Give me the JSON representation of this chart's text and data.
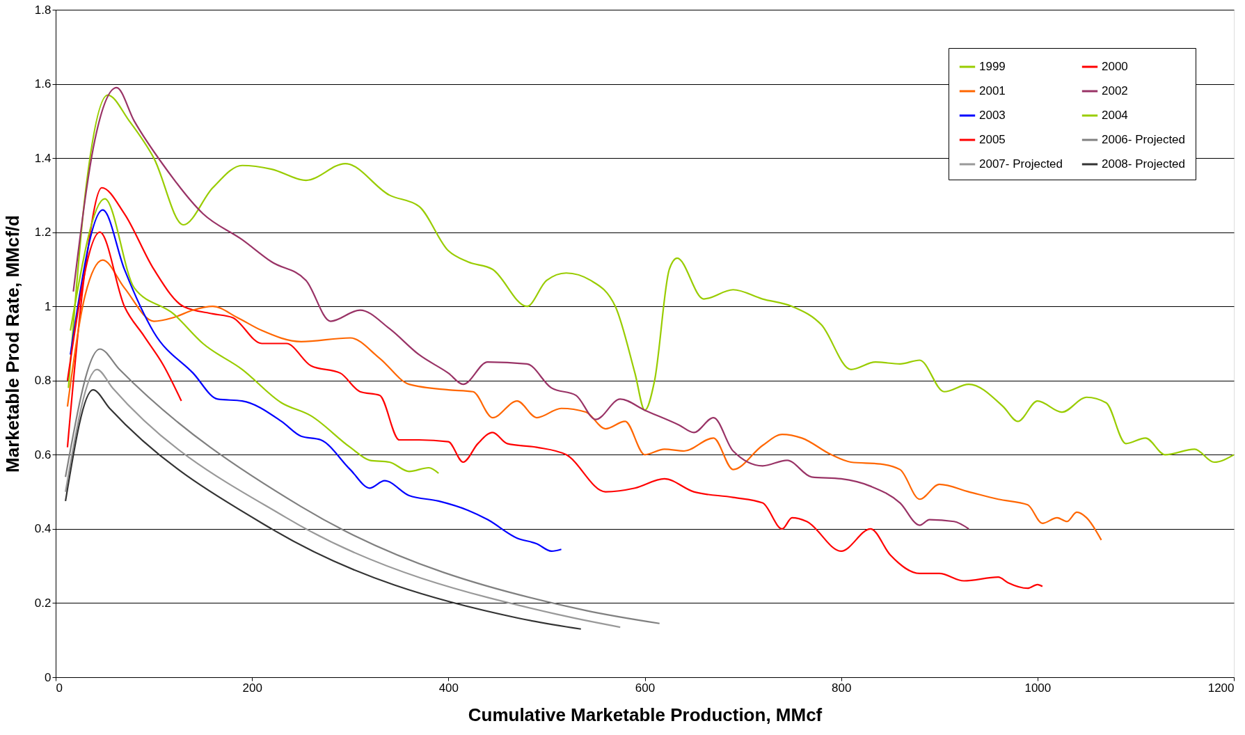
{
  "chart_data": {
    "type": "line",
    "xlabel": "Cumulative Marketable Production, MMcf",
    "ylabel": "Marketable Prod Rate, MMcf/d",
    "xlim": [
      0,
      1200
    ],
    "xticks": [
      0,
      200,
      400,
      600,
      800,
      1000,
      1200
    ],
    "ylim": [
      0,
      1.8
    ],
    "yticks": [
      0,
      0.2,
      0.4,
      0.6,
      0.8,
      1,
      1.2,
      1.4,
      1.6,
      1.8
    ],
    "grid": "y",
    "legend": "top right",
    "marker": "none",
    "line_style": "solid",
    "series": [
      {
        "name": "1999",
        "color": "#99cc00",
        "x": [
          13,
          30,
          53,
          75,
          100,
          130,
          160,
          190,
          220,
          255,
          295,
          340,
          370,
          400,
          420,
          445,
          480,
          500,
          520,
          545,
          570,
          590,
          600,
          610,
          625,
          633,
          660,
          690,
          720,
          750,
          780,
          810,
          835,
          860,
          880,
          905,
          930,
          965,
          980,
          1000,
          1025,
          1050,
          1070,
          1090,
          1110,
          1130,
          1160,
          1180,
          1200
        ],
        "values": [
          0.78,
          1.3,
          1.57,
          1.5,
          1.4,
          1.22,
          1.32,
          1.38,
          1.37,
          1.34,
          1.385,
          1.3,
          1.27,
          1.15,
          1.12,
          1.1,
          1.0,
          1.07,
          1.09,
          1.07,
          1.0,
          0.82,
          0.72,
          0.8,
          1.1,
          1.13,
          1.02,
          1.045,
          1.02,
          1.0,
          0.95,
          0.83,
          0.85,
          0.845,
          0.855,
          0.77,
          0.79,
          0.73,
          0.69,
          0.745,
          0.715,
          0.755,
          0.74,
          0.63,
          0.645,
          0.6,
          0.615,
          0.58,
          0.6
        ]
      },
      {
        "name": "2000",
        "color": "#ff0000",
        "x": [
          12,
          30,
          47,
          70,
          100,
          130,
          160,
          180,
          210,
          235,
          260,
          290,
          310,
          330,
          350,
          370,
          400,
          415,
          430,
          445,
          460,
          490,
          520,
          560,
          590,
          620,
          650,
          690,
          720,
          740,
          750,
          765,
          800,
          830,
          850,
          880,
          900,
          925,
          960,
          970,
          990,
          1000,
          1005
        ],
        "values": [
          0.62,
          1.1,
          1.32,
          1.25,
          1.1,
          1.0,
          0.98,
          0.97,
          0.9,
          0.9,
          0.84,
          0.82,
          0.77,
          0.76,
          0.64,
          0.64,
          0.635,
          0.58,
          0.63,
          0.66,
          0.63,
          0.62,
          0.6,
          0.5,
          0.51,
          0.535,
          0.5,
          0.485,
          0.47,
          0.4,
          0.43,
          0.42,
          0.34,
          0.4,
          0.33,
          0.28,
          0.28,
          0.26,
          0.27,
          0.255,
          0.24,
          0.25,
          0.245
        ]
      },
      {
        "name": "2001",
        "color": "#ff6600",
        "x": [
          12,
          30,
          48,
          70,
          100,
          120,
          140,
          160,
          185,
          210,
          250,
          300,
          330,
          360,
          400,
          425,
          445,
          470,
          490,
          515,
          540,
          560,
          580,
          600,
          620,
          640,
          670,
          690,
          720,
          740,
          760,
          790,
          810,
          840,
          860,
          880,
          900,
          930,
          960,
          990,
          1005,
          1020,
          1030,
          1040,
          1050,
          1065
        ],
        "values": [
          0.73,
          1.03,
          1.125,
          1.05,
          0.96,
          0.97,
          0.99,
          1.0,
          0.97,
          0.935,
          0.905,
          0.915,
          0.86,
          0.79,
          0.775,
          0.77,
          0.7,
          0.745,
          0.7,
          0.725,
          0.715,
          0.67,
          0.69,
          0.6,
          0.615,
          0.61,
          0.645,
          0.56,
          0.625,
          0.655,
          0.645,
          0.6,
          0.58,
          0.575,
          0.56,
          0.48,
          0.52,
          0.5,
          0.48,
          0.465,
          0.415,
          0.43,
          0.42,
          0.445,
          0.43,
          0.37
        ]
      },
      {
        "name": "2002",
        "color": "#993366",
        "x": [
          18,
          40,
          62,
          80,
          110,
          150,
          190,
          220,
          255,
          280,
          310,
          340,
          370,
          400,
          415,
          440,
          480,
          505,
          530,
          550,
          575,
          600,
          635,
          650,
          670,
          690,
          720,
          745,
          770,
          800,
          830,
          860,
          880,
          890,
          915,
          930
        ],
        "values": [
          1.04,
          1.45,
          1.59,
          1.5,
          1.38,
          1.25,
          1.18,
          1.12,
          1.07,
          0.96,
          0.99,
          0.94,
          0.87,
          0.82,
          0.79,
          0.85,
          0.845,
          0.78,
          0.76,
          0.695,
          0.75,
          0.72,
          0.68,
          0.66,
          0.7,
          0.61,
          0.57,
          0.585,
          0.54,
          0.535,
          0.515,
          0.47,
          0.41,
          0.425,
          0.42,
          0.4
        ]
      },
      {
        "name": "2003",
        "color": "#0000ff",
        "x": [
          15,
          48,
          70,
          100,
          140,
          165,
          190,
          230,
          250,
          270,
          300,
          320,
          335,
          360,
          390,
          420,
          440,
          470,
          490,
          505,
          515
        ],
        "values": [
          0.87,
          1.26,
          1.1,
          0.93,
          0.82,
          0.75,
          0.745,
          0.69,
          0.65,
          0.64,
          0.56,
          0.51,
          0.53,
          0.49,
          0.475,
          0.45,
          0.425,
          0.375,
          0.36,
          0.34,
          0.345
        ]
      },
      {
        "name": "2004",
        "color": "#99cc00",
        "x": [
          15,
          50,
          80,
          120,
          150,
          190,
          230,
          260,
          300,
          320,
          340,
          360,
          380,
          390
        ],
        "values": [
          0.935,
          1.29,
          1.05,
          0.98,
          0.9,
          0.83,
          0.74,
          0.705,
          0.62,
          0.585,
          0.58,
          0.555,
          0.565,
          0.55
        ]
      },
      {
        "name": "2005",
        "color": "#ff0000",
        "x": [
          12,
          45,
          70,
          90,
          110,
          128
        ],
        "values": [
          0.8,
          1.2,
          1.0,
          0.92,
          0.84,
          0.745
        ]
      },
      {
        "name": "2006- Projected",
        "color": "#808080",
        "x": [
          10,
          45,
          65,
          250,
          540,
          615
        ],
        "values": [
          0.54,
          0.885,
          0.83,
          0.46,
          0.18,
          0.145
        ]
      },
      {
        "name": "2007- Projected",
        "color": "#999999",
        "x": [
          10,
          42,
          58,
          235,
          510,
          575
        ],
        "values": [
          0.5,
          0.83,
          0.78,
          0.43,
          0.17,
          0.135
        ]
      },
      {
        "name": "2008- Projected",
        "color": "#333333",
        "x": [
          10,
          38,
          55,
          220,
          470,
          535
        ],
        "values": [
          0.475,
          0.775,
          0.725,
          0.4,
          0.16,
          0.13
        ]
      }
    ]
  }
}
